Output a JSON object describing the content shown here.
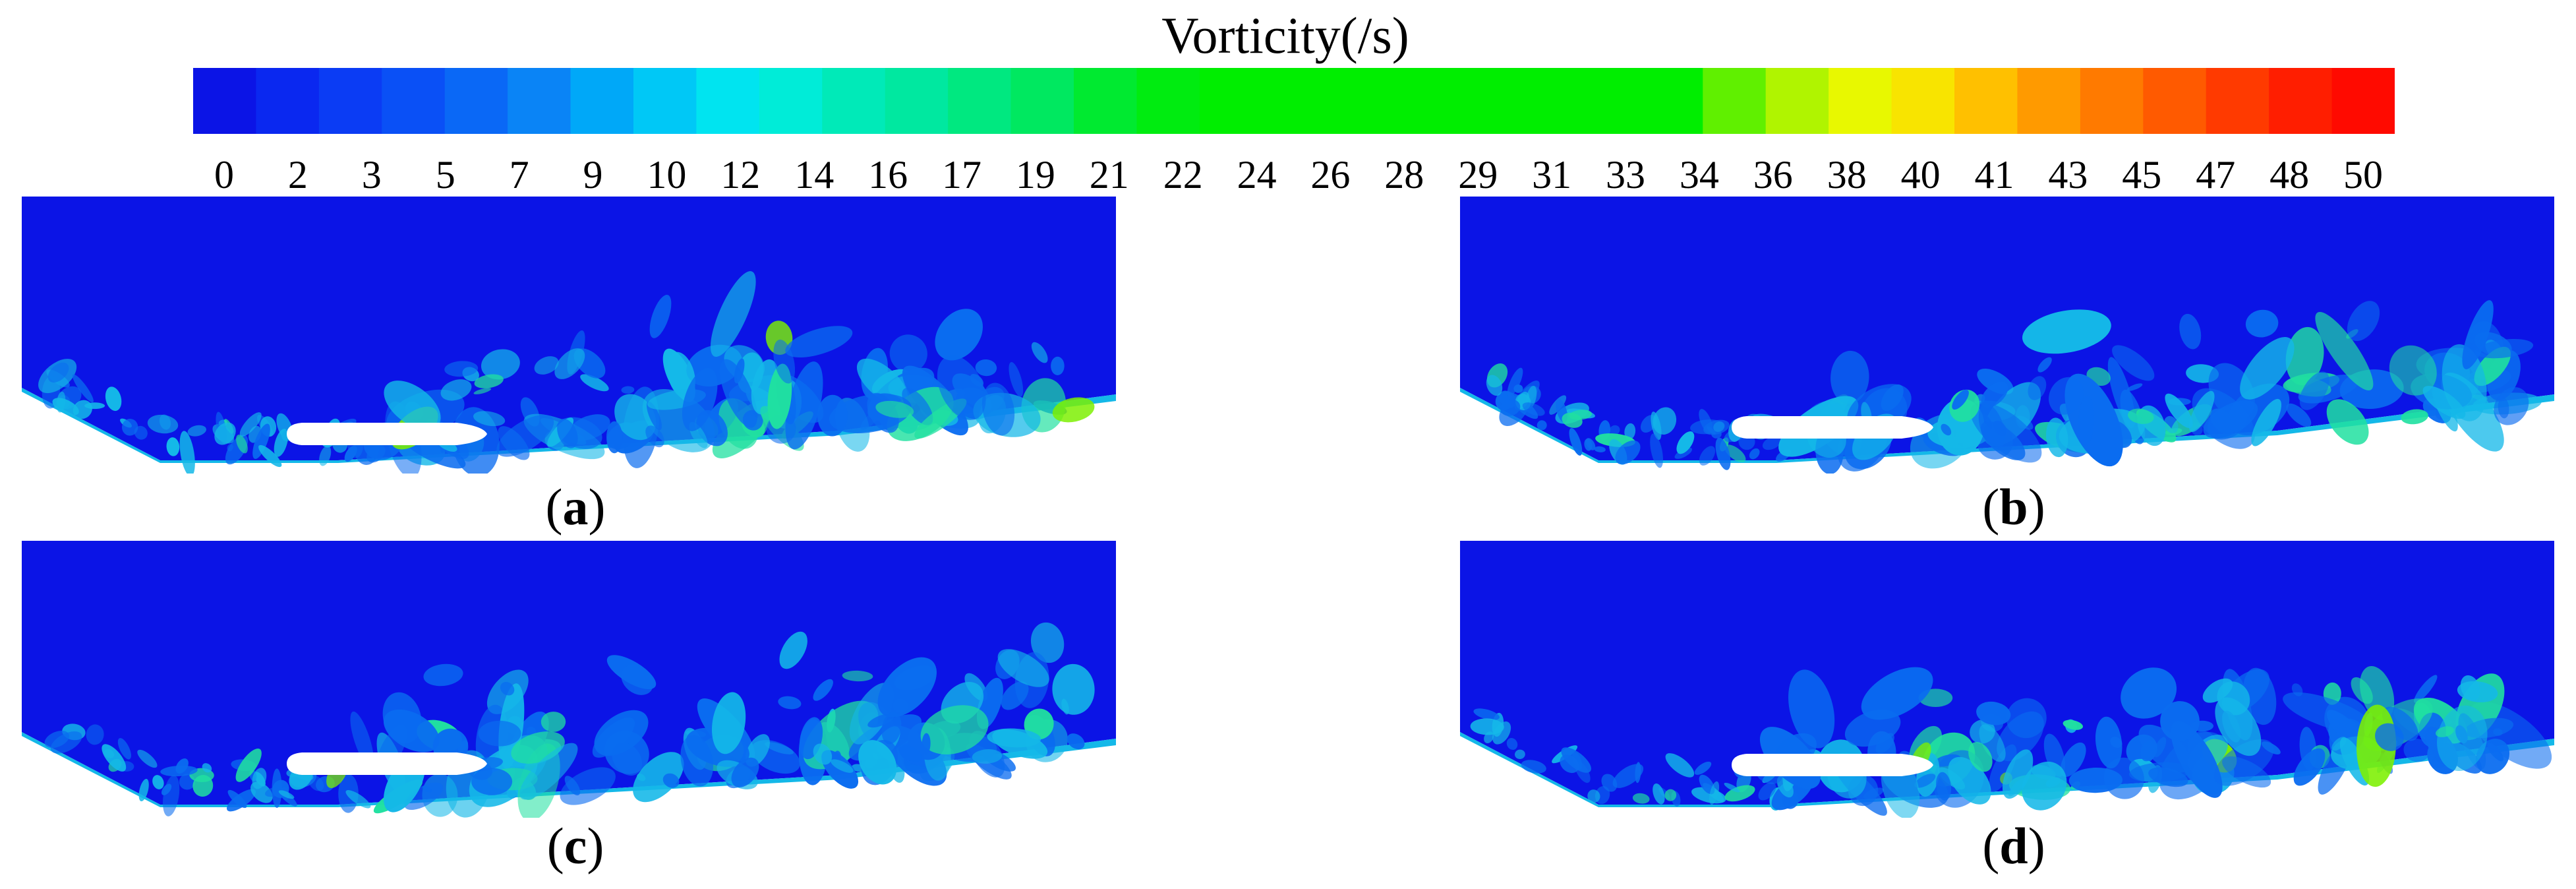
{
  "colorbar": {
    "title": "Vorticity(/s)",
    "ticks": [
      "0",
      "2",
      "3",
      "5",
      "7",
      "9",
      "10",
      "12",
      "14",
      "16",
      "17",
      "19",
      "21",
      "22",
      "24",
      "26",
      "28",
      "29",
      "31",
      "33",
      "34",
      "36",
      "38",
      "40",
      "41",
      "43",
      "45",
      "47",
      "48",
      "50"
    ],
    "colors": [
      "#0b14e6",
      "#0a28f0",
      "#0b3cf4",
      "#0a50f6",
      "#0a68f6",
      "#0a84f6",
      "#00a8f8",
      "#00c8f6",
      "#00e4f0",
      "#00ecd8",
      "#00eab8",
      "#00e8a0",
      "#00e880",
      "#00e860",
      "#00ea30",
      "#00ec10",
      "#00ee00",
      "#00ee00",
      "#00ee00",
      "#00ee00",
      "#00ee00",
      "#00ee00",
      "#00ee00",
      "#00ee00",
      "#60f000",
      "#b0f400",
      "#e8f800",
      "#f8e400",
      "#ffc000",
      "#ff9a00",
      "#ff7a00",
      "#ff5a00",
      "#ff3a00",
      "#ff1e00",
      "#ff0a00"
    ],
    "min": 0,
    "max": 50
  },
  "panels": [
    {
      "caption": "(a)",
      "letter": "a"
    },
    {
      "caption": "(b)",
      "letter": "b"
    },
    {
      "caption": "(c)",
      "letter": "c"
    },
    {
      "caption": "(d)",
      "letter": "d"
    }
  ],
  "colors": {
    "background_field": "#0b14e6",
    "low_vorticity": "#0a6cf0",
    "mid_vorticity": "#14b8e8",
    "high_vorticity": "#20e0a0",
    "peak_vorticity": "#7cf000",
    "hydrofoil": "#ffffff"
  }
}
